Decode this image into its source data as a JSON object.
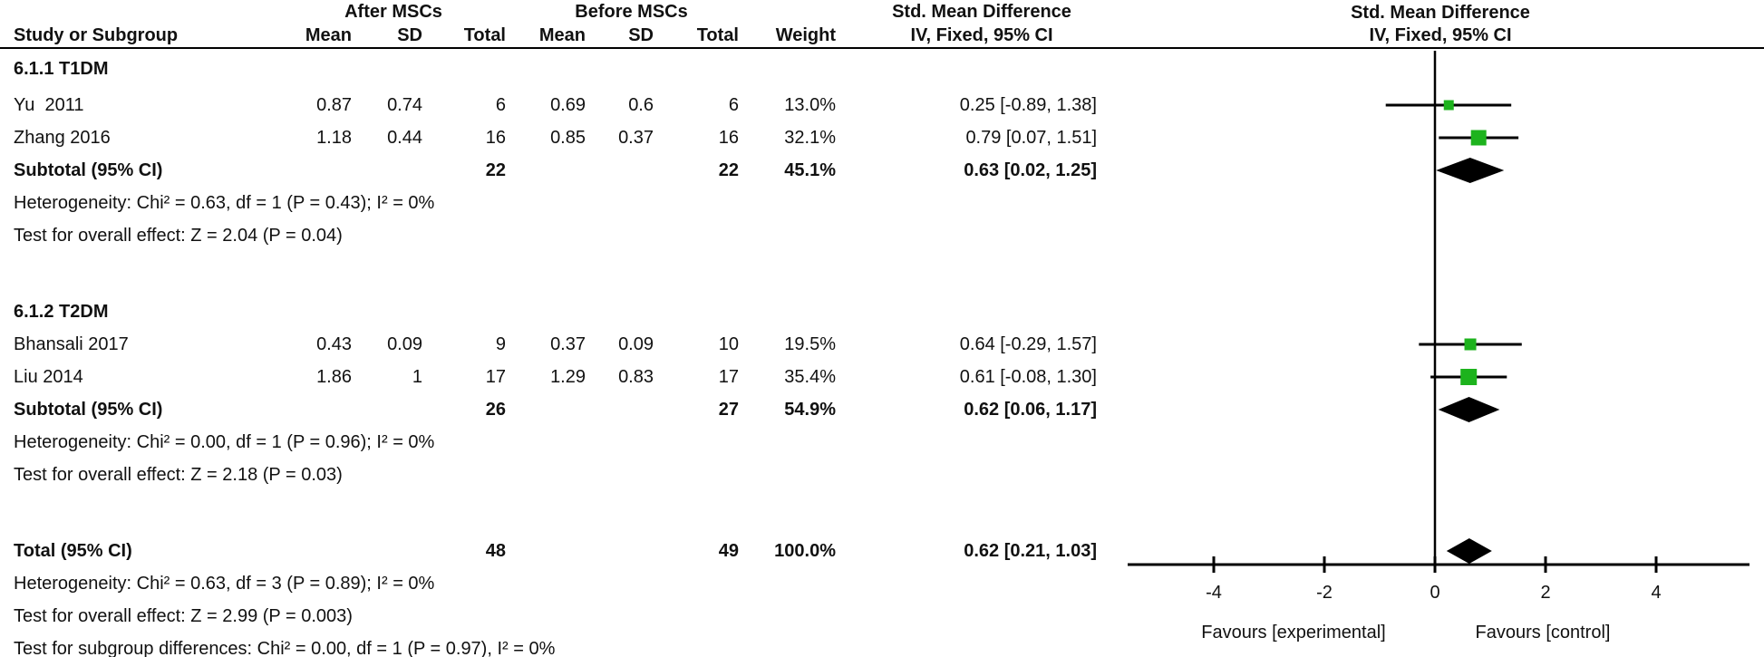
{
  "header": {
    "study_col": "Study or Subgroup",
    "group1_label": "After MSCs",
    "group2_label": "Before MSCs",
    "stat_cols": [
      "Mean",
      "SD",
      "Total",
      "Mean",
      "SD",
      "Total",
      "Weight"
    ],
    "ci_col_line1": "Std. Mean Difference",
    "ci_col_line2": "IV, Fixed, 95% CI",
    "plot_col_line1": "Std. Mean Difference",
    "plot_col_line2": "IV, Fixed, 95% CI"
  },
  "sections": [
    {
      "label": "6.1.1 T1DM",
      "studies": [
        {
          "name": "Yu  2011",
          "mean1": "0.87",
          "sd1": "0.74",
          "total1": "6",
          "mean2": "0.69",
          "sd2": "0.6",
          "total2": "6",
          "weight": "13.0%",
          "ci_text": "0.25 [-0.89, 1.38]",
          "est": 0.25,
          "lo": -0.89,
          "hi": 1.38,
          "weight_pct": 13.0
        },
        {
          "name": "Zhang 2016",
          "mean1": "1.18",
          "sd1": "0.44",
          "total1": "16",
          "mean2": "0.85",
          "sd2": "0.37",
          "total2": "16",
          "weight": "32.1%",
          "ci_text": "0.79 [0.07, 1.51]",
          "est": 0.79,
          "lo": 0.07,
          "hi": 1.51,
          "weight_pct": 32.1
        }
      ],
      "subtotal": {
        "label": "Subtotal (95% CI)",
        "total1": "22",
        "total2": "22",
        "weight": "45.1%",
        "ci_text": "0.63 [0.02, 1.25]",
        "est": 0.63,
        "lo": 0.02,
        "hi": 1.25
      },
      "footnotes": [
        "Heterogeneity: Chi² = 0.63, df = 1 (P = 0.43); I² = 0%",
        "Test for overall effect: Z = 2.04 (P = 0.04)"
      ]
    },
    {
      "label": "6.1.2 T2DM",
      "studies": [
        {
          "name": "Bhansali 2017",
          "mean1": "0.43",
          "sd1": "0.09",
          "total1": "9",
          "mean2": "0.37",
          "sd2": "0.09",
          "total2": "10",
          "weight": "19.5%",
          "ci_text": "0.64 [-0.29, 1.57]",
          "est": 0.64,
          "lo": -0.29,
          "hi": 1.57,
          "weight_pct": 19.5
        },
        {
          "name": "Liu 2014",
          "mean1": "1.86",
          "sd1": "1",
          "total1": "17",
          "mean2": "1.29",
          "sd2": "0.83",
          "total2": "17",
          "weight": "35.4%",
          "ci_text": "0.61 [-0.08, 1.30]",
          "est": 0.61,
          "lo": -0.08,
          "hi": 1.3,
          "weight_pct": 35.4
        }
      ],
      "subtotal": {
        "label": "Subtotal (95% CI)",
        "total1": "26",
        "total2": "27",
        "weight": "54.9%",
        "ci_text": "0.62 [0.06, 1.17]",
        "est": 0.62,
        "lo": 0.06,
        "hi": 1.17
      },
      "footnotes": [
        "Heterogeneity: Chi² = 0.00, df = 1 (P = 0.96); I² = 0%",
        "Test for overall effect: Z = 2.18 (P = 0.03)"
      ]
    }
  ],
  "total": {
    "label": "Total (95% CI)",
    "total1": "48",
    "total2": "49",
    "weight": "100.0%",
    "ci_text": "0.62 [0.21, 1.03]",
    "est": 0.62,
    "lo": 0.21,
    "hi": 1.03
  },
  "total_footnotes": [
    "Heterogeneity: Chi² = 0.63, df = 3 (P = 0.89); I² = 0%",
    "Test for overall effect: Z = 2.99 (P = 0.003)",
    "Test for subgroup differences: Chi² = 0.00, df = 1 (P = 0.97), I² = 0%"
  ],
  "axis": {
    "ticks": [
      -4,
      -2,
      0,
      2,
      4
    ],
    "favours_left": "Favours [experimental]",
    "favours_right": "Favours [control]"
  },
  "colors": {
    "marker_green": "#1db31d",
    "diamond_black": "#000000",
    "line_black": "#000000"
  },
  "chart_data": {
    "type": "forest",
    "title": "Std. Mean Difference, IV, Fixed, 95% CI",
    "xlabel_left": "Favours [experimental]",
    "xlabel_right": "Favours [control]",
    "x_ticks": [
      -4,
      -2,
      0,
      2,
      4
    ],
    "xlim": [
      -5.5,
      5.6
    ],
    "subgroups": [
      {
        "name": "6.1.1 T1DM",
        "studies": [
          {
            "study": "Yu  2011",
            "smd": 0.25,
            "ci_low": -0.89,
            "ci_high": 1.38,
            "weight_pct": 13.0
          },
          {
            "study": "Zhang 2016",
            "smd": 0.79,
            "ci_low": 0.07,
            "ci_high": 1.51,
            "weight_pct": 32.1
          }
        ],
        "subtotal": {
          "smd": 0.63,
          "ci_low": 0.02,
          "ci_high": 1.25,
          "weight_pct": 45.1
        },
        "heterogeneity": "Chi² = 0.63, df = 1 (P = 0.43); I² = 0%",
        "overall_effect": "Z = 2.04 (P = 0.04)"
      },
      {
        "name": "6.1.2 T2DM",
        "studies": [
          {
            "study": "Bhansali 2017",
            "smd": 0.64,
            "ci_low": -0.29,
            "ci_high": 1.57,
            "weight_pct": 19.5
          },
          {
            "study": "Liu 2014",
            "smd": 0.61,
            "ci_low": -0.08,
            "ci_high": 1.3,
            "weight_pct": 35.4
          }
        ],
        "subtotal": {
          "smd": 0.62,
          "ci_low": 0.06,
          "ci_high": 1.17,
          "weight_pct": 54.9
        },
        "heterogeneity": "Chi² = 0.00, df = 1 (P = 0.96); I² = 0%",
        "overall_effect": "Z = 2.18 (P = 0.03)"
      }
    ],
    "total": {
      "smd": 0.62,
      "ci_low": 0.21,
      "ci_high": 1.03,
      "weight_pct": 100.0
    },
    "total_heterogeneity": "Chi² = 0.63, df = 3 (P = 0.89); I² = 0%",
    "total_overall_effect": "Z = 2.99 (P = 0.003)",
    "subgroup_differences": "Chi² = 0.00, df = 1 (P = 0.97), I² = 0%"
  }
}
